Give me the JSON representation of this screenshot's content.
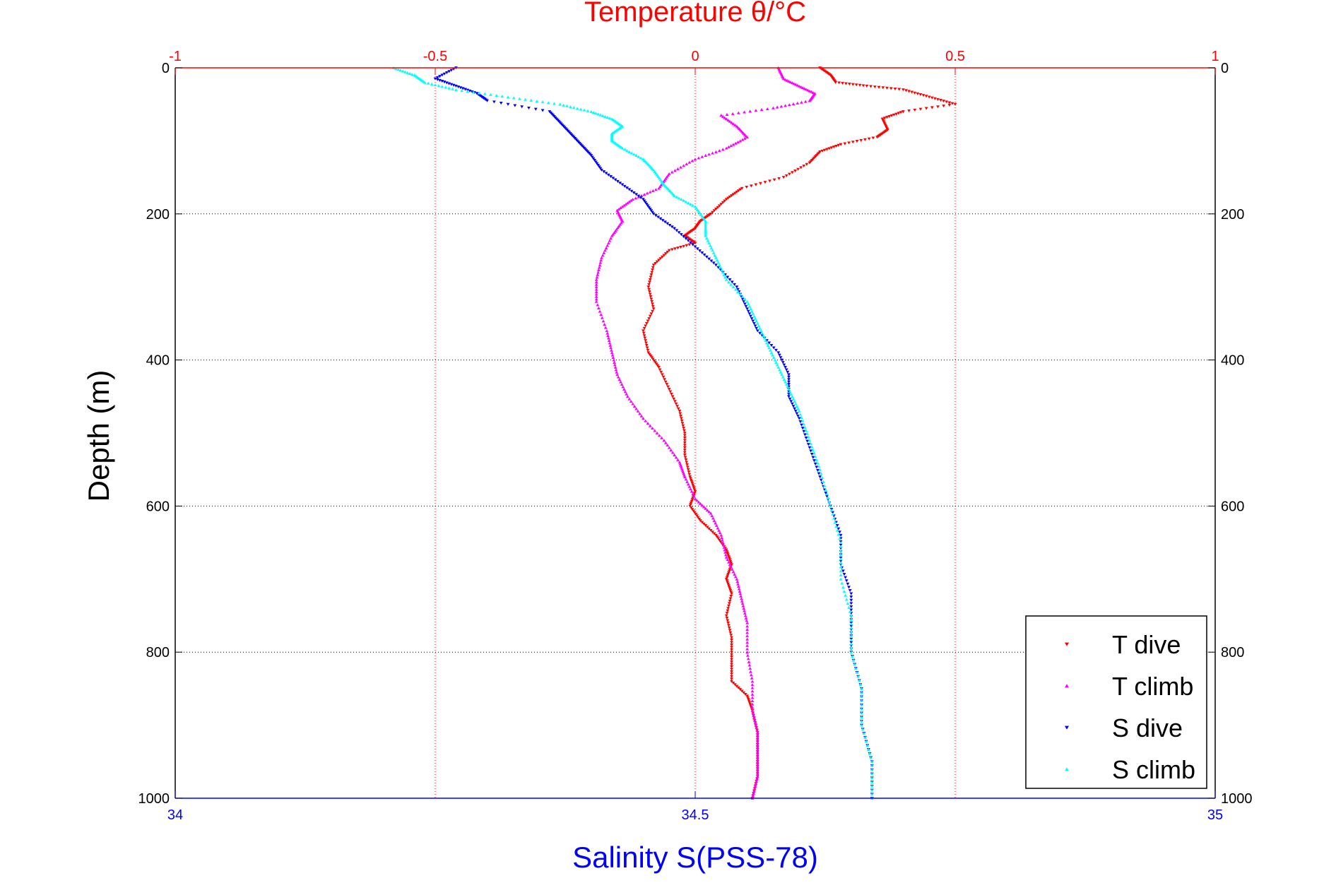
{
  "chart_data": {
    "type": "scatter",
    "title": "Temperature θ/°C",
    "xlabel": "Salinity S(PSS-78)",
    "ylabel": "Depth (m)",
    "top_axis": {
      "ticks": [
        "-1",
        "-0.5",
        "0",
        "0.5",
        "1"
      ],
      "range": [
        -1,
        1
      ],
      "color": "#ff0000"
    },
    "bottom_axis": {
      "ticks": [
        "34",
        "34.5",
        "35"
      ],
      "range": [
        34,
        35
      ],
      "color": "#0000ff"
    },
    "depth_axis": {
      "ticks": [
        "0",
        "200",
        "400",
        "600",
        "800",
        "1000"
      ],
      "range": [
        0,
        1000
      ],
      "reversed": true
    },
    "grid": true,
    "legend_position": "bottom-right",
    "series": [
      {
        "name": "T dive",
        "color": "#ff0000",
        "marker": "triangle-down",
        "axis": "temperature",
        "points": [
          [
            0.24,
            0
          ],
          [
            0.26,
            10
          ],
          [
            0.27,
            20
          ],
          [
            0.33,
            25
          ],
          [
            0.4,
            30
          ],
          [
            0.45,
            40
          ],
          [
            0.5,
            50
          ],
          [
            0.4,
            60
          ],
          [
            0.36,
            70
          ],
          [
            0.37,
            85
          ],
          [
            0.35,
            95
          ],
          [
            0.28,
            105
          ],
          [
            0.24,
            115
          ],
          [
            0.22,
            130
          ],
          [
            0.17,
            150
          ],
          [
            0.09,
            165
          ],
          [
            0.06,
            180
          ],
          [
            0.03,
            200
          ],
          [
            0.01,
            210
          ],
          [
            0.0,
            220
          ],
          [
            -0.02,
            230
          ],
          [
            0.0,
            240
          ],
          [
            -0.05,
            250
          ],
          [
            -0.08,
            270
          ],
          [
            -0.09,
            300
          ],
          [
            -0.08,
            330
          ],
          [
            -0.1,
            360
          ],
          [
            -0.09,
            390
          ],
          [
            -0.07,
            410
          ],
          [
            -0.05,
            440
          ],
          [
            -0.03,
            470
          ],
          [
            -0.02,
            500
          ],
          [
            -0.02,
            530
          ],
          [
            -0.01,
            560
          ],
          [
            0.0,
            580
          ],
          [
            -0.01,
            600
          ],
          [
            0.01,
            620
          ],
          [
            0.04,
            640
          ],
          [
            0.06,
            660
          ],
          [
            0.07,
            680
          ],
          [
            0.06,
            700
          ],
          [
            0.07,
            720
          ],
          [
            0.06,
            750
          ],
          [
            0.07,
            780
          ],
          [
            0.07,
            810
          ],
          [
            0.07,
            840
          ],
          [
            0.1,
            860
          ],
          [
            0.11,
            880
          ],
          [
            0.12,
            910
          ],
          [
            0.12,
            940
          ],
          [
            0.12,
            970
          ],
          [
            0.11,
            1000
          ]
        ]
      },
      {
        "name": "T climb",
        "color": "#ff00ff",
        "marker": "triangle-up",
        "axis": "temperature",
        "points": [
          [
            0.16,
            0
          ],
          [
            0.17,
            15
          ],
          [
            0.2,
            25
          ],
          [
            0.23,
            35
          ],
          [
            0.22,
            45
          ],
          [
            0.15,
            55
          ],
          [
            0.05,
            65
          ],
          [
            0.08,
            80
          ],
          [
            0.1,
            95
          ],
          [
            0.06,
            110
          ],
          [
            0.0,
            125
          ],
          [
            -0.05,
            145
          ],
          [
            -0.07,
            165
          ],
          [
            -0.12,
            180
          ],
          [
            -0.15,
            195
          ],
          [
            -0.14,
            210
          ],
          [
            -0.16,
            230
          ],
          [
            -0.18,
            260
          ],
          [
            -0.19,
            290
          ],
          [
            -0.19,
            320
          ],
          [
            -0.17,
            360
          ],
          [
            -0.16,
            390
          ],
          [
            -0.15,
            420
          ],
          [
            -0.13,
            450
          ],
          [
            -0.1,
            480
          ],
          [
            -0.06,
            510
          ],
          [
            -0.03,
            540
          ],
          [
            -0.02,
            560
          ],
          [
            0.0,
            590
          ],
          [
            0.03,
            610
          ],
          [
            0.05,
            640
          ],
          [
            0.06,
            670
          ],
          [
            0.08,
            700
          ],
          [
            0.09,
            730
          ],
          [
            0.1,
            760
          ],
          [
            0.1,
            800
          ],
          [
            0.11,
            840
          ],
          [
            0.11,
            880
          ],
          [
            0.12,
            910
          ],
          [
            0.12,
            940
          ],
          [
            0.12,
            970
          ],
          [
            0.11,
            1000
          ]
        ]
      },
      {
        "name": "S dive",
        "color": "#0000ff",
        "marker": "triangle-down",
        "axis": "salinity",
        "points": [
          [
            34.27,
            0
          ],
          [
            34.25,
            15
          ],
          [
            34.27,
            25
          ],
          [
            34.29,
            35
          ],
          [
            34.3,
            45
          ],
          [
            34.36,
            60
          ],
          [
            34.37,
            75
          ],
          [
            34.38,
            90
          ],
          [
            34.39,
            105
          ],
          [
            34.4,
            120
          ],
          [
            34.41,
            140
          ],
          [
            34.43,
            160
          ],
          [
            34.45,
            180
          ],
          [
            34.46,
            200
          ],
          [
            34.48,
            220
          ],
          [
            34.5,
            245
          ],
          [
            34.52,
            270
          ],
          [
            34.54,
            300
          ],
          [
            34.55,
            330
          ],
          [
            34.56,
            360
          ],
          [
            34.58,
            390
          ],
          [
            34.59,
            420
          ],
          [
            34.59,
            450
          ],
          [
            34.6,
            480
          ],
          [
            34.61,
            520
          ],
          [
            34.62,
            560
          ],
          [
            34.63,
            600
          ],
          [
            34.64,
            640
          ],
          [
            34.64,
            680
          ],
          [
            34.65,
            720
          ],
          [
            34.65,
            760
          ],
          [
            34.65,
            800
          ],
          [
            34.66,
            850
          ],
          [
            34.66,
            900
          ],
          [
            34.67,
            950
          ],
          [
            34.67,
            1000
          ]
        ]
      },
      {
        "name": "S climb",
        "color": "#00ffff",
        "marker": "triangle-up",
        "axis": "salinity",
        "points": [
          [
            34.21,
            0
          ],
          [
            34.23,
            10
          ],
          [
            34.24,
            20
          ],
          [
            34.27,
            30
          ],
          [
            34.32,
            40
          ],
          [
            34.37,
            50
          ],
          [
            34.4,
            60
          ],
          [
            34.42,
            70
          ],
          [
            34.43,
            80
          ],
          [
            34.42,
            90
          ],
          [
            34.42,
            100
          ],
          [
            34.43,
            110
          ],
          [
            34.45,
            125
          ],
          [
            34.46,
            140
          ],
          [
            34.47,
            160
          ],
          [
            34.48,
            175
          ],
          [
            34.5,
            190
          ],
          [
            34.51,
            210
          ],
          [
            34.51,
            230
          ],
          [
            34.52,
            260
          ],
          [
            34.53,
            290
          ],
          [
            34.55,
            320
          ],
          [
            34.56,
            350
          ],
          [
            34.57,
            380
          ],
          [
            34.58,
            410
          ],
          [
            34.59,
            440
          ],
          [
            34.6,
            470
          ],
          [
            34.61,
            510
          ],
          [
            34.62,
            550
          ],
          [
            34.63,
            600
          ],
          [
            34.64,
            650
          ],
          [
            34.64,
            700
          ],
          [
            34.65,
            750
          ],
          [
            34.65,
            800
          ],
          [
            34.66,
            850
          ],
          [
            34.66,
            900
          ],
          [
            34.67,
            950
          ],
          [
            34.67,
            1000
          ]
        ]
      }
    ]
  }
}
